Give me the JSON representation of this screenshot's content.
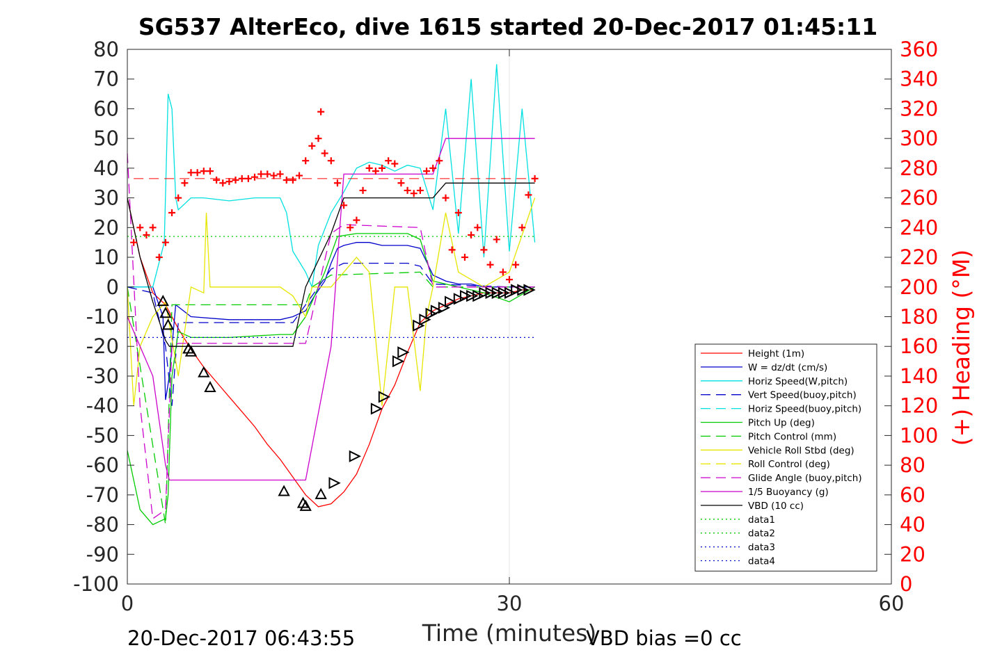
{
  "chart_data": {
    "type": "line",
    "title": "SG537 AlterEco, dive 1615 started 20-Dec-2017 01:45:11",
    "xlabel": "Time (minutes)",
    "ylabel_right": "(+) Heading (°M)",
    "footer_left": "20-Dec-2017 06:43:55",
    "footer_right": "VBD bias =0 cc",
    "xlim": [
      0,
      60
    ],
    "ylim": [
      -100,
      80
    ],
    "ylim_right": [
      0,
      360
    ],
    "x_ticks": [
      0,
      30,
      60
    ],
    "x_tick_labels": [
      "0",
      "30",
      "60"
    ],
    "y_ticks": [
      80,
      70,
      60,
      50,
      40,
      30,
      20,
      10,
      0,
      -10,
      -20,
      -30,
      -40,
      -50,
      -60,
      -70,
      -80,
      -90,
      -100
    ],
    "y_tick_labels": [
      "80",
      "70",
      "60",
      "50",
      "40",
      "30",
      "20",
      "10",
      "0",
      "-10",
      "-20",
      "-30",
      "-40",
      "-50",
      "-60",
      "-70",
      "-80",
      "-90",
      "-100"
    ],
    "y_right_ticks": [
      360,
      340,
      320,
      300,
      280,
      260,
      240,
      220,
      200,
      180,
      160,
      140,
      120,
      100,
      80,
      60,
      40,
      20,
      0
    ],
    "y_right_tick_labels": [
      "360",
      "340",
      "320",
      "300",
      "280",
      "260",
      "240",
      "220",
      "200",
      "180",
      "160",
      "140",
      "120",
      "100",
      "80",
      "60",
      "40",
      "20",
      "0"
    ],
    "grid": true,
    "legend_position": "bottom-right",
    "colors": {
      "height": "#ff0000",
      "w": "#0000cc",
      "horiz_speed_w": "#00e0e0",
      "vert_speed_buoy": "#0000cc",
      "horiz_speed_buoy": "#00e0e0",
      "pitch_up": "#00cc00",
      "pitch_control": "#00cc00",
      "roll": "#ffff00",
      "roll_control": "#ffff00",
      "glide_angle": "#cc00cc",
      "buoyancy": "#cc00cc",
      "vbd": "#000000",
      "heading": "#ff0000",
      "right_axis": "#ff0000"
    },
    "legend": [
      {
        "label": "Height (1m)",
        "color": "#ff0000",
        "dash": "solid"
      },
      {
        "label": "W = dz/dt (cm/s)",
        "color": "#0000cc",
        "dash": "solid"
      },
      {
        "label": "Horiz Speed(W,pitch)",
        "color": "#00e0e0",
        "dash": "solid"
      },
      {
        "label": "Vert Speed(buoy,pitch)",
        "color": "#0000cc",
        "dash": "dash"
      },
      {
        "label": "Horiz Speed(buoy,pitch)",
        "color": "#00e0e0",
        "dash": "dash"
      },
      {
        "label": "Pitch Up (deg)",
        "color": "#00cc00",
        "dash": "solid"
      },
      {
        "label": "Pitch Control (mm)",
        "color": "#00cc00",
        "dash": "dash"
      },
      {
        "label": "Vehicle Roll Stbd (deg)",
        "color": "#e6e600",
        "dash": "solid"
      },
      {
        "label": "Roll Control (deg)",
        "color": "#e6e600",
        "dash": "dash"
      },
      {
        "label": "Glide Angle (buoy,pitch)",
        "color": "#cc00cc",
        "dash": "dash"
      },
      {
        "label": "1/5 Buoyancy (g)",
        "color": "#cc00cc",
        "dash": "solid"
      },
      {
        "label": "VBD (10 cc)",
        "color": "#000000",
        "dash": "solid"
      },
      {
        "label": "data1",
        "color": "#00cc00",
        "dash": "dot"
      },
      {
        "label": "data2",
        "color": "#00cc00",
        "dash": "dot"
      },
      {
        "label": "data3",
        "color": "#0000cc",
        "dash": "dot"
      },
      {
        "label": "data4",
        "color": "#0000cc",
        "dash": "dot"
      }
    ],
    "series": [
      {
        "name": "Height (1m)",
        "x": [
          0,
          1,
          2,
          3,
          4,
          5,
          6,
          7,
          8,
          9,
          10,
          11,
          12,
          13,
          14,
          15,
          16,
          17,
          18,
          19,
          20,
          21,
          22,
          23,
          24,
          25,
          26,
          27,
          28,
          29,
          30,
          31,
          32
        ],
        "y": [
          30,
          10,
          -2,
          -6,
          -14,
          -21,
          -27,
          -32,
          -37,
          -42,
          -47,
          -53,
          -58,
          -64,
          -70,
          -74,
          -73,
          -69,
          -63,
          -53,
          -41,
          -33,
          -22,
          -12,
          -8,
          -6,
          -4,
          -3,
          -2,
          -2,
          -2,
          -1,
          -1
        ]
      },
      {
        "name": "W = dz/dt (cm/s)",
        "x": [
          0,
          2,
          2.8,
          3,
          3.3,
          3.8,
          5,
          8,
          12,
          13,
          14,
          14.7,
          15.5,
          16,
          16.5,
          17,
          18,
          19,
          20,
          21,
          22,
          23,
          24,
          25,
          26,
          27,
          28,
          30,
          32
        ],
        "y": [
          0,
          0,
          -10,
          -38,
          -30,
          -6,
          -10,
          -11,
          -11,
          -10,
          -8,
          -3,
          2,
          8,
          13,
          14,
          15,
          15,
          14,
          14,
          14,
          13,
          4,
          2,
          1,
          1,
          0,
          0,
          0
        ]
      },
      {
        "name": "Horiz Speed(W,pitch)",
        "x": [
          0,
          2,
          2.9,
          3.2,
          3.5,
          3.8,
          4,
          4.5,
          5,
          6,
          8,
          10,
          12,
          12.5,
          13,
          14,
          14.5,
          15,
          16,
          17,
          18,
          19,
          20,
          21,
          22,
          23,
          24,
          25,
          26,
          27,
          28,
          29,
          30,
          31,
          32
        ],
        "y": [
          0,
          0,
          15,
          65,
          60,
          30,
          26,
          28,
          30,
          30,
          29,
          30,
          30,
          25,
          12,
          5,
          0,
          14,
          25,
          32,
          40,
          42,
          41,
          39,
          41,
          40,
          26,
          60,
          18,
          70,
          10,
          75,
          12,
          60,
          15
        ]
      },
      {
        "name": "Vert Speed(buoy,pitch)",
        "x": [
          0,
          2,
          3,
          3.5,
          4,
          8,
          12,
          13,
          14.5,
          16,
          17,
          22,
          23,
          24,
          30,
          32
        ],
        "y": [
          0,
          -2,
          -20,
          -40,
          -12,
          -12,
          -12,
          -12,
          -3,
          6,
          8,
          8,
          7,
          1,
          0,
          0
        ]
      },
      {
        "name": "Pitch Up (deg)",
        "x": [
          0,
          1,
          2,
          3,
          3.2,
          3.5,
          4,
          5,
          8,
          12,
          13,
          14,
          14.5,
          15.5,
          16.5,
          18,
          22,
          23,
          24,
          26,
          28,
          30,
          32
        ],
        "y": [
          -55,
          -75,
          -80,
          -78,
          -70,
          -30,
          -15,
          -17,
          -17,
          -16,
          -16,
          -10,
          -5,
          5,
          17,
          18,
          18,
          16,
          2,
          0,
          -2,
          -5,
          0
        ]
      },
      {
        "name": "Pitch Control (mm)",
        "x": [
          0,
          3,
          3.5,
          13,
          14,
          14.5,
          16,
          23,
          24,
          32
        ],
        "y": [
          0,
          -80,
          -6,
          -6,
          -6,
          0,
          4,
          5,
          0,
          0
        ]
      },
      {
        "name": "Vehicle Roll Stbd (deg)",
        "x": [
          0,
          0.5,
          1,
          2,
          3,
          4,
          5,
          6,
          6.2,
          6.5,
          8,
          12,
          13,
          14,
          14.5,
          16,
          18,
          19,
          20,
          21,
          22,
          23,
          23.5,
          24,
          25,
          26,
          28,
          30,
          32
        ],
        "y": [
          0,
          -40,
          -20,
          -10,
          -5,
          -30,
          0,
          -2,
          25,
          0,
          0,
          0,
          -3,
          -10,
          0,
          0,
          10,
          5,
          -40,
          0,
          0,
          -35,
          -10,
          0,
          25,
          5,
          0,
          5,
          30
        ]
      },
      {
        "name": "Glide Angle (buoy,pitch)",
        "x": [
          0,
          1,
          2,
          3,
          3.5,
          4,
          8,
          12,
          13,
          14,
          15,
          16,
          17,
          23,
          24,
          30,
          32
        ],
        "y": [
          45,
          -40,
          -78,
          -75,
          -20,
          -19,
          -19,
          -19,
          -19,
          -19,
          0,
          18,
          21,
          20,
          0,
          0,
          0
        ]
      },
      {
        "name": "1/5 Buoyancy (g)",
        "x": [
          0,
          2,
          3,
          3.3,
          13,
          14,
          16,
          17,
          24,
          25,
          32
        ],
        "y": [
          -10,
          -30,
          -60,
          -65,
          -65,
          -65,
          -20,
          38,
          38,
          50,
          50
        ]
      },
      {
        "name": "VBD (10 cc)",
        "x": [
          0,
          1,
          2,
          3,
          3.3,
          13,
          14,
          16,
          17,
          24,
          25,
          32
        ],
        "y": [
          30,
          10,
          -5,
          -18,
          -20,
          -20,
          0,
          18,
          30,
          30,
          35,
          35
        ]
      },
      {
        "name": "data1",
        "x": [
          0,
          32
        ],
        "y": [
          17,
          17
        ]
      },
      {
        "name": "data4",
        "x": [
          0,
          32
        ],
        "y": [
          -17,
          -17
        ]
      }
    ],
    "heading_points": [
      {
        "x": 0.5,
        "y": 230
      },
      {
        "x": 1,
        "y": 240
      },
      {
        "x": 1.5,
        "y": 235
      },
      {
        "x": 2,
        "y": 240
      },
      {
        "x": 2.5,
        "y": 220
      },
      {
        "x": 3,
        "y": 230
      },
      {
        "x": 3.5,
        "y": 250
      },
      {
        "x": 4,
        "y": 260
      },
      {
        "x": 4.5,
        "y": 270
      },
      {
        "x": 5,
        "y": 277
      },
      {
        "x": 5.5,
        "y": 277
      },
      {
        "x": 6,
        "y": 278
      },
      {
        "x": 6.5,
        "y": 278
      },
      {
        "x": 7,
        "y": 272
      },
      {
        "x": 7.5,
        "y": 270
      },
      {
        "x": 8,
        "y": 271
      },
      {
        "x": 8.5,
        "y": 272
      },
      {
        "x": 9,
        "y": 273
      },
      {
        "x": 9.5,
        "y": 273
      },
      {
        "x": 10,
        "y": 274
      },
      {
        "x": 10.5,
        "y": 276
      },
      {
        "x": 11,
        "y": 276
      },
      {
        "x": 11.5,
        "y": 275
      },
      {
        "x": 12,
        "y": 276
      },
      {
        "x": 12.5,
        "y": 272
      },
      {
        "x": 13,
        "y": 272
      },
      {
        "x": 13.5,
        "y": 275
      },
      {
        "x": 14,
        "y": 285
      },
      {
        "x": 14.5,
        "y": 295
      },
      {
        "x": 15,
        "y": 300
      },
      {
        "x": 15.2,
        "y": 318
      },
      {
        "x": 15.5,
        "y": 290
      },
      {
        "x": 16,
        "y": 285
      },
      {
        "x": 16.5,
        "y": 270
      },
      {
        "x": 17,
        "y": 255
      },
      {
        "x": 17.5,
        "y": 240
      },
      {
        "x": 18,
        "y": 245
      },
      {
        "x": 18.5,
        "y": 265
      },
      {
        "x": 19,
        "y": 280
      },
      {
        "x": 19.5,
        "y": 278
      },
      {
        "x": 20,
        "y": 280
      },
      {
        "x": 20.5,
        "y": 285
      },
      {
        "x": 21,
        "y": 283
      },
      {
        "x": 21.5,
        "y": 270
      },
      {
        "x": 22,
        "y": 265
      },
      {
        "x": 22.5,
        "y": 263
      },
      {
        "x": 23,
        "y": 265
      },
      {
        "x": 23.5,
        "y": 278
      },
      {
        "x": 24,
        "y": 280
      },
      {
        "x": 24.5,
        "y": 285
      },
      {
        "x": 25,
        "y": 260
      },
      {
        "x": 25.5,
        "y": 225
      },
      {
        "x": 26,
        "y": 250
      },
      {
        "x": 26.5,
        "y": 220
      },
      {
        "x": 27,
        "y": 235
      },
      {
        "x": 27.5,
        "y": 240
      },
      {
        "x": 28,
        "y": 225
      },
      {
        "x": 28.5,
        "y": 215
      },
      {
        "x": 29,
        "y": 232
      },
      {
        "x": 29.5,
        "y": 210
      },
      {
        "x": 30,
        "y": 205
      },
      {
        "x": 30.5,
        "y": 215
      },
      {
        "x": 31,
        "y": 240
      },
      {
        "x": 31.5,
        "y": 262
      },
      {
        "x": 32,
        "y": 273
      }
    ],
    "heading_reference": 273,
    "dive_markers": [
      {
        "x": 2.8,
        "y": -5
      },
      {
        "x": 3,
        "y": -9
      },
      {
        "x": 3.2,
        "y": -13
      },
      {
        "x": 4.8,
        "y": -21
      },
      {
        "x": 5,
        "y": -22
      },
      {
        "x": 6,
        "y": -29
      },
      {
        "x": 6.5,
        "y": -34
      },
      {
        "x": 12.3,
        "y": -69
      },
      {
        "x": 13.8,
        "y": -73
      },
      {
        "x": 14,
        "y": -74
      },
      {
        "x": 15.2,
        "y": -70
      }
    ],
    "climb_markers": [
      {
        "x": 16.2,
        "y": -66
      },
      {
        "x": 17.8,
        "y": -57
      },
      {
        "x": 19.5,
        "y": -41
      },
      {
        "x": 20.1,
        "y": -37
      },
      {
        "x": 21.2,
        "y": -25
      },
      {
        "x": 21.6,
        "y": -22
      },
      {
        "x": 22.8,
        "y": -13
      },
      {
        "x": 23.3,
        "y": -11
      },
      {
        "x": 23.8,
        "y": -9
      },
      {
        "x": 24.2,
        "y": -8
      },
      {
        "x": 24.8,
        "y": -7
      },
      {
        "x": 25.3,
        "y": -5
      },
      {
        "x": 26,
        "y": -4
      },
      {
        "x": 26.5,
        "y": -3
      },
      {
        "x": 27,
        "y": -3
      },
      {
        "x": 27.5,
        "y": -3
      },
      {
        "x": 28,
        "y": -2
      },
      {
        "x": 28.5,
        "y": -2
      },
      {
        "x": 29,
        "y": -2
      },
      {
        "x": 29.5,
        "y": -2
      },
      {
        "x": 30,
        "y": -2
      },
      {
        "x": 30.5,
        "y": -1
      },
      {
        "x": 31,
        "y": -1
      },
      {
        "x": 31.5,
        "y": -1
      }
    ]
  }
}
